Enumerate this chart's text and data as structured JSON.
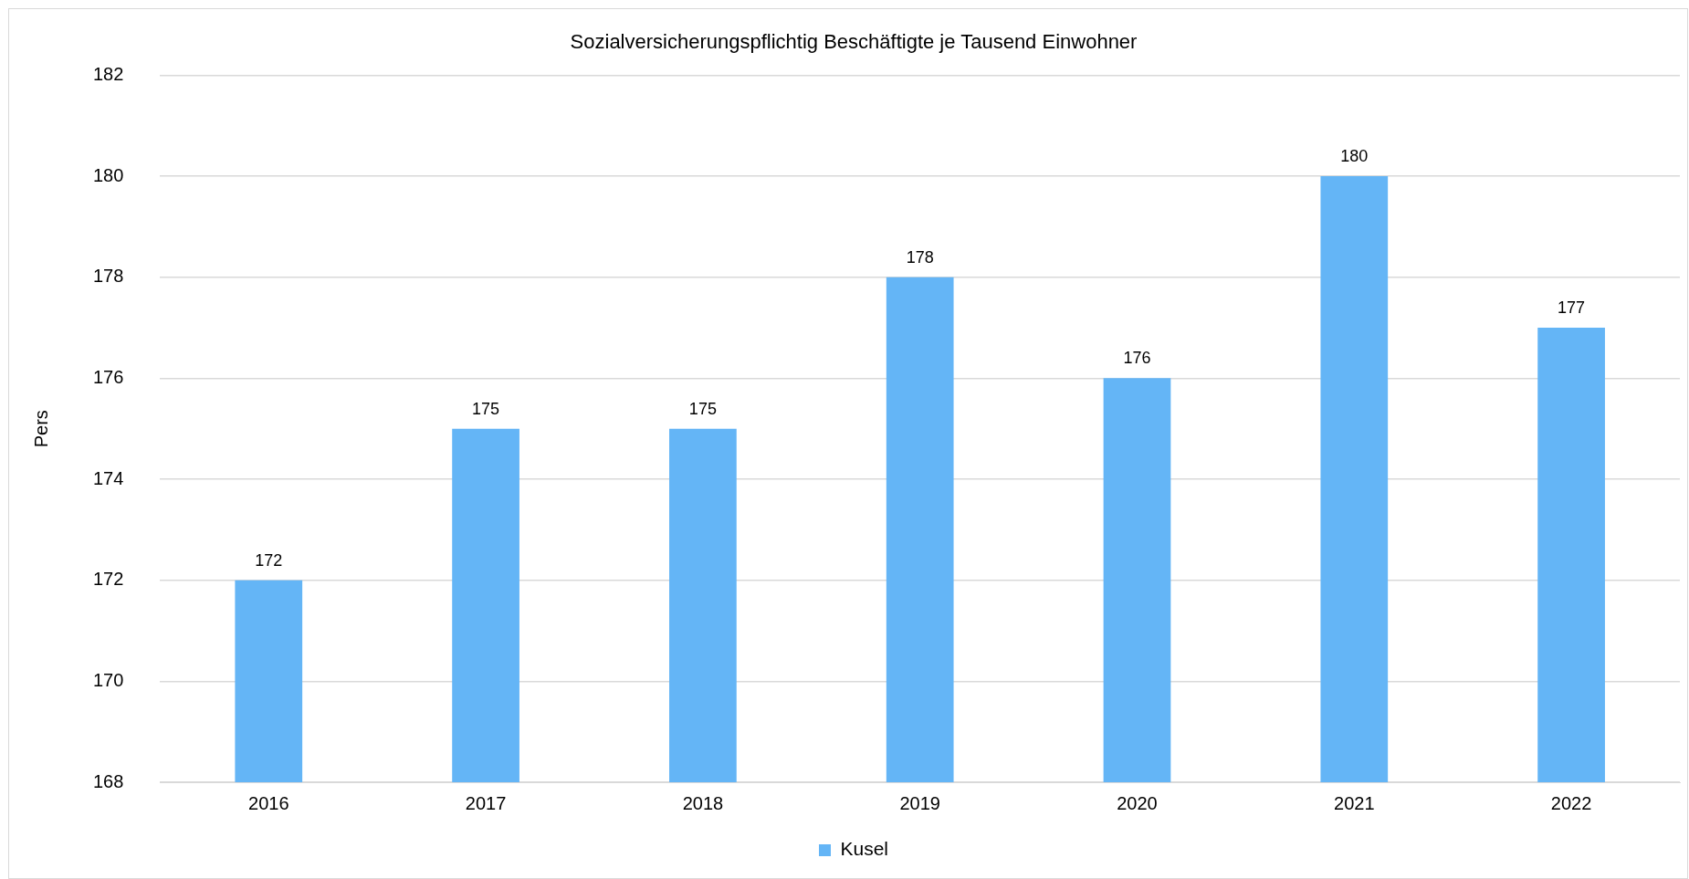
{
  "chart_data": {
    "type": "bar",
    "title": "Sozialversicherungspflichtig Beschäftigte je Tausend Einwohner",
    "ylabel": "Pers",
    "categories": [
      "2016",
      "2017",
      "2018",
      "2019",
      "2020",
      "2021",
      "2022"
    ],
    "series": [
      {
        "name": "Kusel",
        "color": "#64b5f6",
        "values": [
          172,
          175,
          175,
          178,
          176,
          180,
          177
        ]
      }
    ],
    "ylim": [
      168,
      182
    ],
    "yticks": [
      168,
      170,
      172,
      174,
      176,
      178,
      180,
      182
    ],
    "grid": "y",
    "legend": "bottom",
    "data_labels": true
  }
}
